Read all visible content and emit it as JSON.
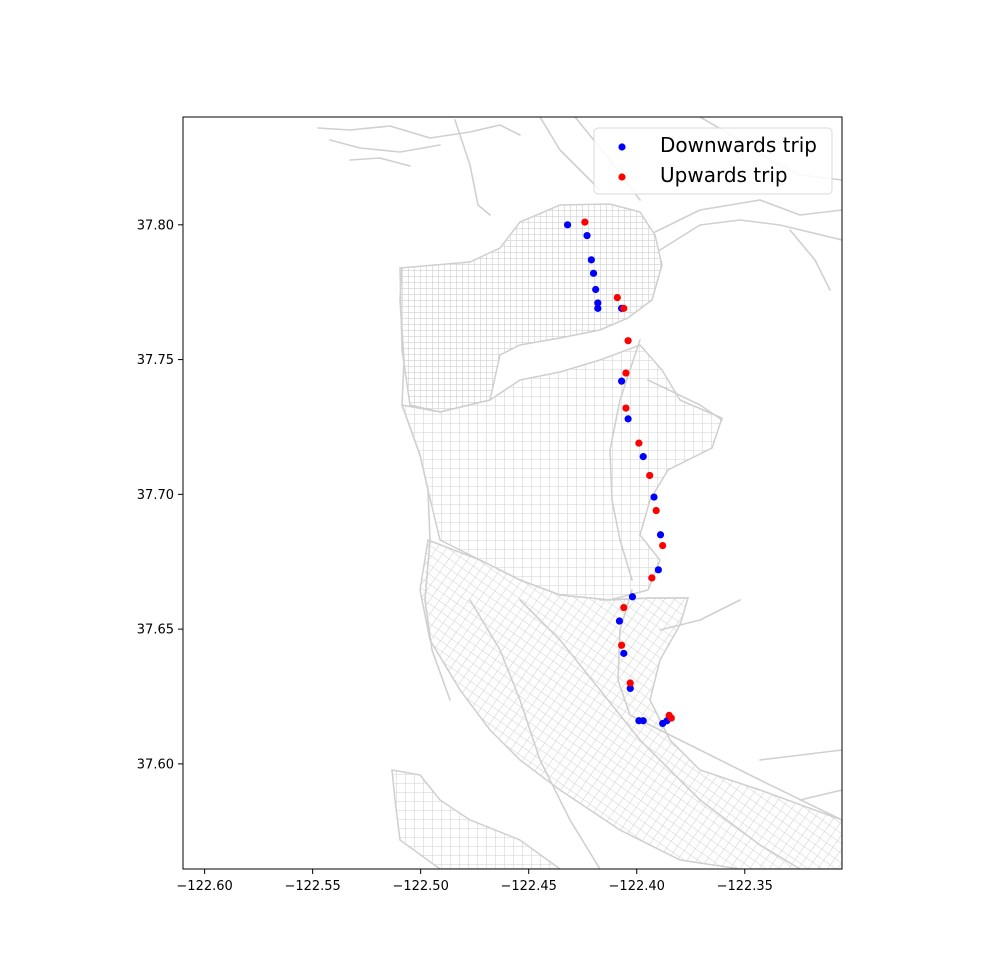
{
  "chart_data": {
    "type": "scatter",
    "xlim": [
      -122.61,
      -122.305
    ],
    "ylim": [
      37.561,
      37.84
    ],
    "x_ticks": [
      {
        "value": -122.6,
        "label": "−122.60"
      },
      {
        "value": -122.55,
        "label": "−122.55"
      },
      {
        "value": -122.5,
        "label": "−122.50"
      },
      {
        "value": -122.45,
        "label": "−122.45"
      },
      {
        "value": -122.4,
        "label": "−122.40"
      },
      {
        "value": -122.35,
        "label": "−122.35"
      }
    ],
    "y_ticks": [
      {
        "value": 37.6,
        "label": "37.60"
      },
      {
        "value": 37.65,
        "label": "37.65"
      },
      {
        "value": 37.7,
        "label": "37.70"
      },
      {
        "value": 37.75,
        "label": "37.75"
      },
      {
        "value": 37.8,
        "label": "37.80"
      }
    ],
    "legend": {
      "placement": "top-right"
    },
    "basemap_color": "#d0d0d0",
    "series": [
      {
        "name": "Downwards trip",
        "color": "#0000ff",
        "points": [
          [
            -122.432,
            37.8
          ],
          [
            -122.423,
            37.796
          ],
          [
            -122.421,
            37.787
          ],
          [
            -122.42,
            37.782
          ],
          [
            -122.419,
            37.776
          ],
          [
            -122.418,
            37.771
          ],
          [
            -122.418,
            37.769
          ],
          [
            -122.407,
            37.769
          ],
          [
            -122.407,
            37.742
          ],
          [
            -122.404,
            37.728
          ],
          [
            -122.397,
            37.714
          ],
          [
            -122.392,
            37.699
          ],
          [
            -122.389,
            37.685
          ],
          [
            -122.39,
            37.672
          ],
          [
            -122.402,
            37.662
          ],
          [
            -122.408,
            37.653
          ],
          [
            -122.406,
            37.641
          ],
          [
            -122.403,
            37.628
          ],
          [
            -122.399,
            37.616
          ],
          [
            -122.397,
            37.616
          ],
          [
            -122.388,
            37.615
          ],
          [
            -122.386,
            37.616
          ]
        ]
      },
      {
        "name": "Upwards trip",
        "color": "#ff0000",
        "points": [
          [
            -122.424,
            37.801
          ],
          [
            -122.409,
            37.773
          ],
          [
            -122.406,
            37.769
          ],
          [
            -122.404,
            37.757
          ],
          [
            -122.405,
            37.745
          ],
          [
            -122.405,
            37.732
          ],
          [
            -122.399,
            37.719
          ],
          [
            -122.394,
            37.707
          ],
          [
            -122.391,
            37.694
          ],
          [
            -122.388,
            37.681
          ],
          [
            -122.393,
            37.669
          ],
          [
            -122.406,
            37.658
          ],
          [
            -122.407,
            37.644
          ],
          [
            -122.403,
            37.63
          ],
          [
            -122.385,
            37.618
          ],
          [
            -122.384,
            37.617
          ]
        ]
      }
    ]
  }
}
